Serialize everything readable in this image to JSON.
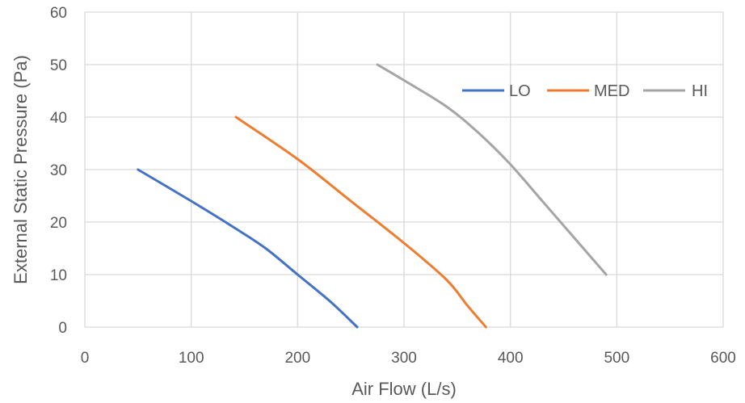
{
  "chart_data": {
    "type": "line",
    "title": "",
    "xlabel": "Air Flow (L/s)",
    "ylabel": "External Static Pressure (Pa)",
    "xlim": [
      0,
      600
    ],
    "ylim": [
      0,
      60
    ],
    "xticks": [
      0,
      100,
      200,
      300,
      400,
      500,
      600
    ],
    "yticks": [
      0,
      10,
      20,
      30,
      40,
      50,
      60
    ],
    "grid": true,
    "legend_position": "top-right",
    "series": [
      {
        "name": "LO",
        "color": "#4472c4",
        "x": [
          50,
          100,
          140,
          170,
          200,
          230,
          256
        ],
        "y": [
          30,
          24,
          19,
          15,
          10,
          5,
          0
        ]
      },
      {
        "name": "MED",
        "color": "#ed7d31",
        "x": [
          142,
          200,
          250,
          300,
          340,
          360,
          377
        ],
        "y": [
          40,
          32,
          24,
          16,
          9,
          4,
          0
        ]
      },
      {
        "name": "HI",
        "color": "#a5a5a5",
        "x": [
          275,
          300,
          340,
          370,
          400,
          430,
          460,
          490
        ],
        "y": [
          50,
          47,
          42,
          37,
          31,
          24,
          17,
          10
        ]
      }
    ]
  }
}
